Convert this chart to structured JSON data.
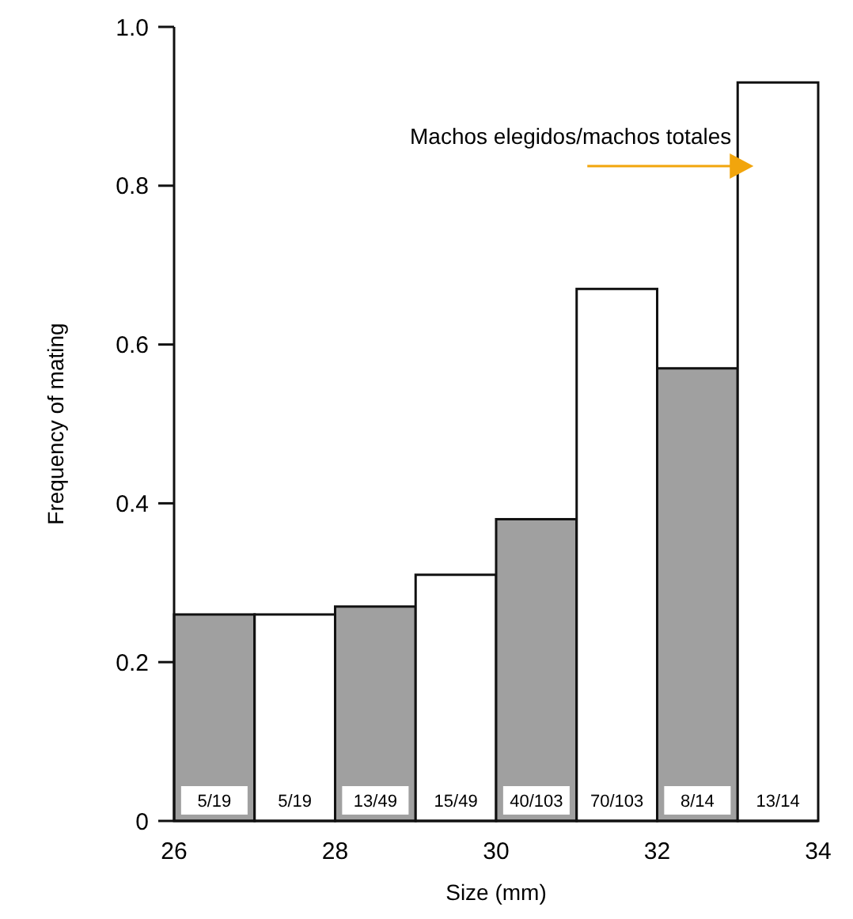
{
  "chart_data": {
    "type": "histogram",
    "xlabel": "Size (mm)",
    "ylabel": "Frequency of mating",
    "bins": [
      26,
      27,
      28,
      29,
      30,
      31,
      32,
      33,
      34
    ],
    "values": [
      0.26,
      0.26,
      0.27,
      0.31,
      0.38,
      0.67,
      0.57,
      0.93
    ],
    "colors": [
      "#a0a0a0",
      "#ffffff",
      "#a0a0a0",
      "#ffffff",
      "#a0a0a0",
      "#ffffff",
      "#a0a0a0",
      "#ffffff"
    ],
    "value_labels": [
      "5/19",
      "5/19",
      "13/49",
      "15/49",
      "40/103",
      "70/103",
      "8/14",
      "13/14"
    ],
    "xlim": [
      26,
      34
    ],
    "xticks": [
      26,
      28,
      30,
      32,
      34
    ],
    "ylim": [
      0,
      1
    ],
    "yticks": [
      0,
      0.2,
      0.4,
      0.6,
      0.8,
      {
        "value": 1,
        "label": "1.0"
      }
    ],
    "annotations": [
      "Machos elegidos/machos totales"
    ],
    "grid": false
  }
}
